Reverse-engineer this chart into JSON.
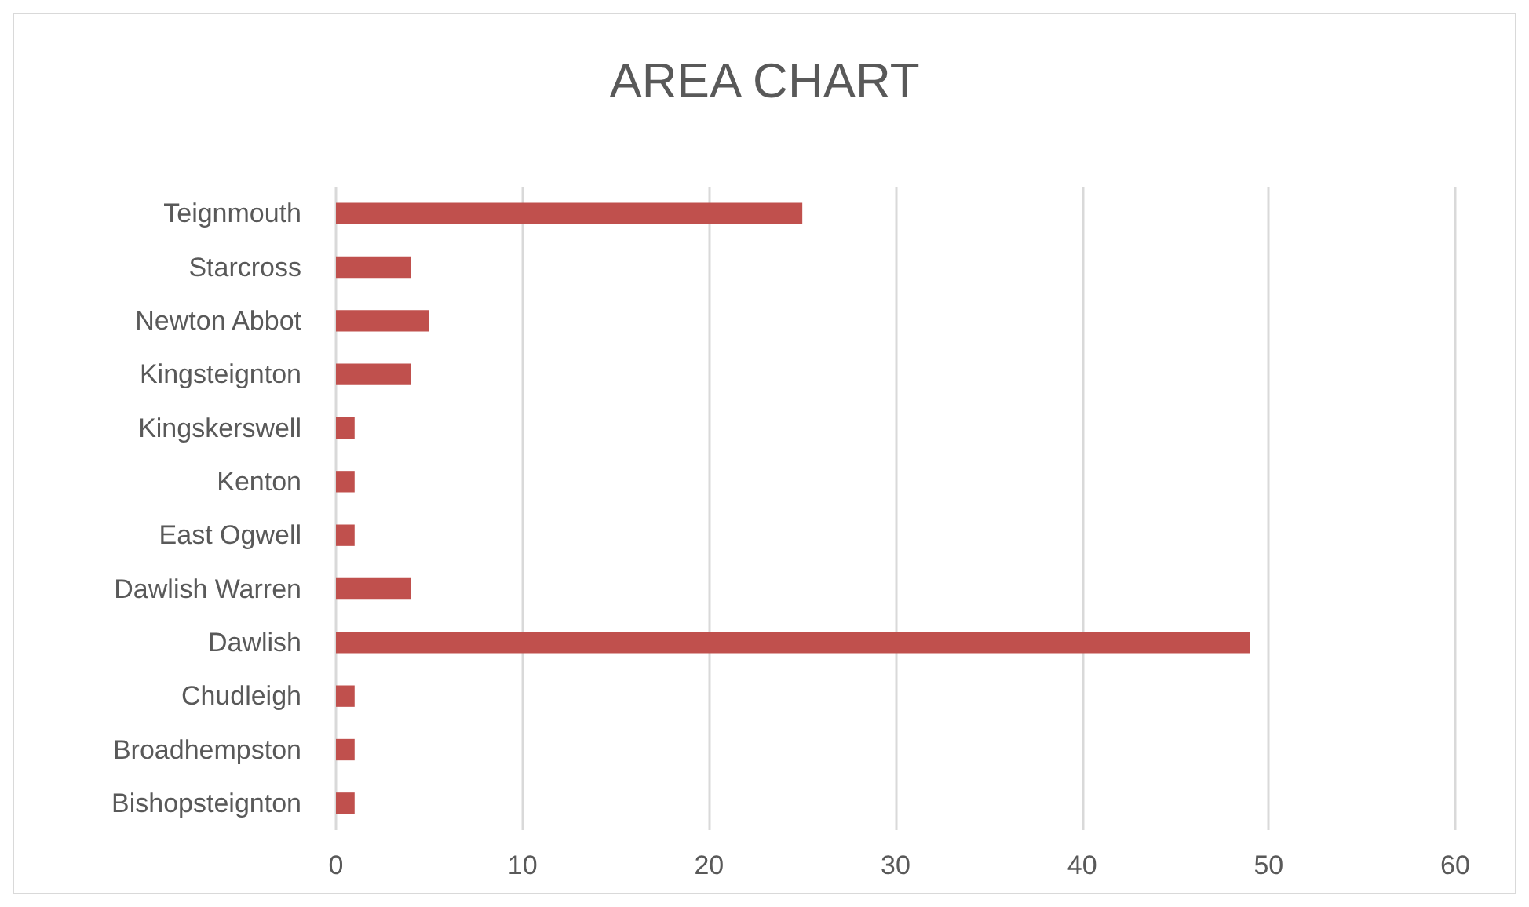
{
  "chart_data": {
    "type": "bar",
    "orientation": "horizontal",
    "title": "AREA CHART",
    "categories": [
      "Teignmouth",
      "Starcross",
      "Newton Abbot",
      "Kingsteignton",
      "Kingskerswell",
      "Kenton",
      "East Ogwell",
      "Dawlish Warren",
      "Dawlish",
      "Chudleigh",
      "Broadhempston",
      "Bishopsteignton"
    ],
    "values": [
      25,
      4,
      5,
      4,
      1,
      1,
      1,
      4,
      49,
      1,
      1,
      1
    ],
    "color": "#c0504d",
    "xlim": [
      0,
      60
    ],
    "xticks": [
      0,
      10,
      20,
      30,
      40,
      50,
      60
    ],
    "grid": "x"
  }
}
